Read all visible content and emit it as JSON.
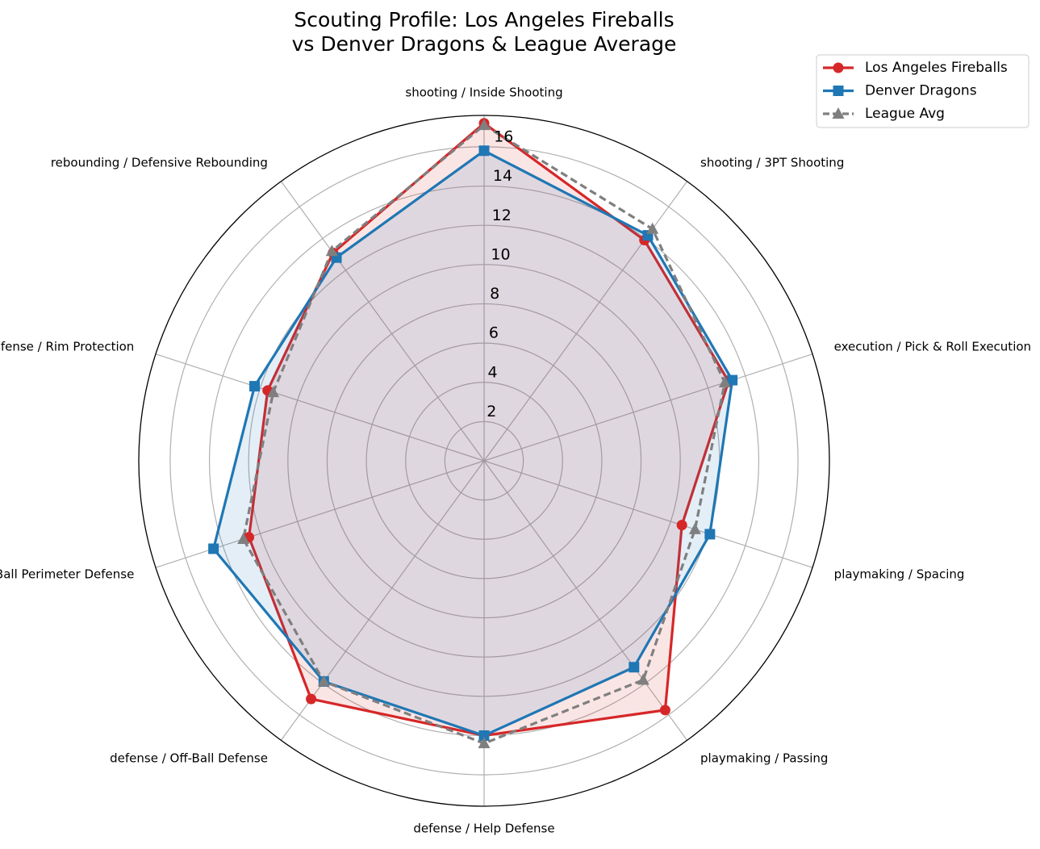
{
  "chart_data": {
    "type": "radar",
    "title": [
      "Scouting Profile: Los Angeles Fireballs",
      "vs Denver Dragons & League Average"
    ],
    "categories": [
      "shooting / Inside Shooting",
      "shooting / 3PT Shooting",
      "execution / Pick & Roll Execution",
      "playmaking / Spacing",
      "playmaking / Passing",
      "defense / Help Defense",
      "defense / Off-Ball Defense",
      "defense / On-Ball Perimeter Defense",
      "defense / Rim Protection",
      "rebounding / Defensive Rebounding"
    ],
    "series": [
      {
        "name": "Los Angeles Fireballs",
        "color": "#d62728",
        "marker": "circle",
        "linestyle": "solid",
        "fill": true,
        "values": [
          17.2,
          13.9,
          13.1,
          10.6,
          15.7,
          14.0,
          15.0,
          12.6,
          11.6,
          13.1
        ]
      },
      {
        "name": "Denver Dragons",
        "color": "#1f77b4",
        "marker": "square",
        "linestyle": "solid",
        "fill": true,
        "values": [
          15.8,
          14.2,
          13.3,
          12.1,
          13.0,
          14.0,
          13.9,
          14.5,
          12.3,
          12.8
        ]
      },
      {
        "name": "League Avg",
        "color": "#7f7f7f",
        "marker": "triangle",
        "linestyle": "dashed",
        "fill": false,
        "values": [
          17.1,
          14.6,
          12.9,
          11.3,
          13.8,
          14.4,
          13.9,
          12.9,
          11.3,
          13.2
        ]
      }
    ],
    "ylim": [
      0,
      17.6
    ],
    "yticks": [
      2,
      4,
      6,
      8,
      10,
      12,
      14,
      16
    ],
    "grid": true,
    "legend": "upper right"
  }
}
